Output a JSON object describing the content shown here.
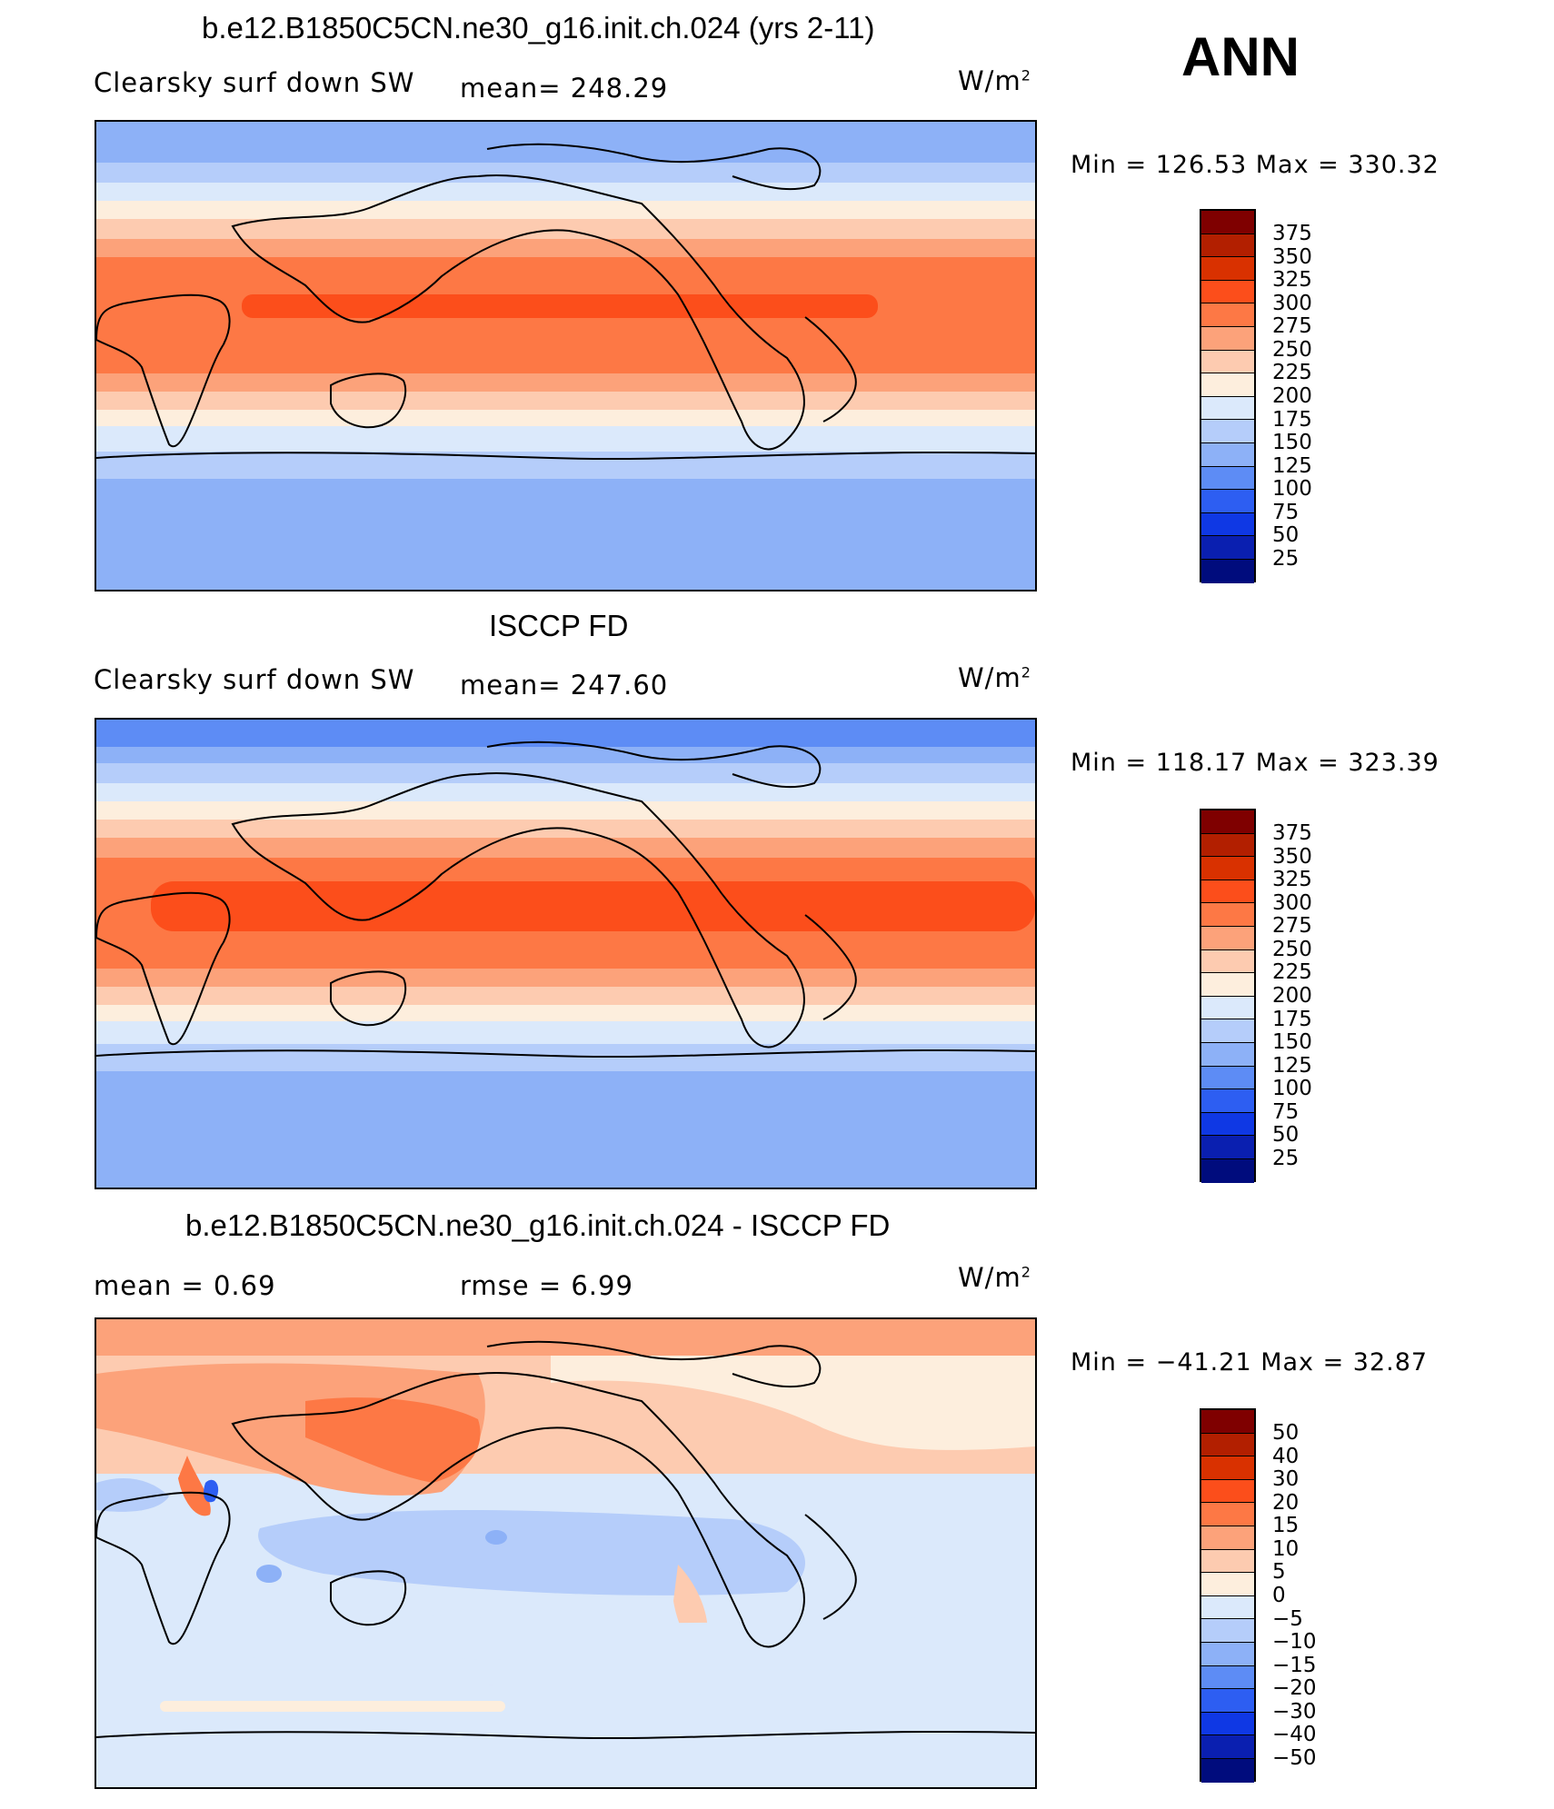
{
  "season": "ANN",
  "units_base": "W/m",
  "units_exp": "2",
  "panel1": {
    "title": "b.e12.B1850C5CN.ne30_g16.init.ch.024 (yrs 2-11)",
    "variable": "Clearsky surf down SW",
    "mean_label": "mean= 248.29",
    "minmax": "Min  =  126.53  Max  =  330.32",
    "colorbar_ticks": [
      "375",
      "350",
      "325",
      "300",
      "275",
      "250",
      "225",
      "200",
      "175",
      "150",
      "125",
      "100",
      "75",
      "50",
      "25"
    ]
  },
  "panel2": {
    "title": "ISCCP FD",
    "variable": "Clearsky surf down SW",
    "mean_label": "mean= 247.60",
    "minmax": "Min  =  118.17  Max  =  323.39",
    "colorbar_ticks": [
      "375",
      "350",
      "325",
      "300",
      "275",
      "250",
      "225",
      "200",
      "175",
      "150",
      "125",
      "100",
      "75",
      "50",
      "25"
    ]
  },
  "panel3": {
    "title": "b.e12.B1850C5CN.ne30_g16.init.ch.024 - ISCCP FD",
    "mean_label": "mean  =      0.69",
    "rmse_label": "rmse  =      6.99",
    "minmax": "Min  =  −41.21  Max  =     32.87",
    "colorbar_ticks": [
      "50",
      "40",
      "30",
      "20",
      "15",
      "10",
      "5",
      "0",
      "−5",
      "−10",
      "−15",
      "−20",
      "−30",
      "−40",
      "−50"
    ]
  },
  "colors": {
    "abs_scale": [
      "#7f0000",
      "#b21f00",
      "#d93100",
      "#fc4e1b",
      "#fd7845",
      "#fca27a",
      "#fdcbb0",
      "#fdeedd",
      "#dbe9fb",
      "#b5cdfa",
      "#8db1f7",
      "#5d8cf5",
      "#2d5ef2",
      "#0f38e4",
      "#0a1fb0",
      "#000c7d"
    ],
    "diff_scale": [
      "#7f0000",
      "#b21f00",
      "#d93100",
      "#fc4e1b",
      "#fd7845",
      "#fca27a",
      "#fdcbb0",
      "#fdeedd",
      "#dbe9fb",
      "#b5cdfa",
      "#8db1f7",
      "#5d8cf5",
      "#2d5ef2",
      "#0f38e4",
      "#0a1fb0",
      "#000c7d"
    ]
  }
}
